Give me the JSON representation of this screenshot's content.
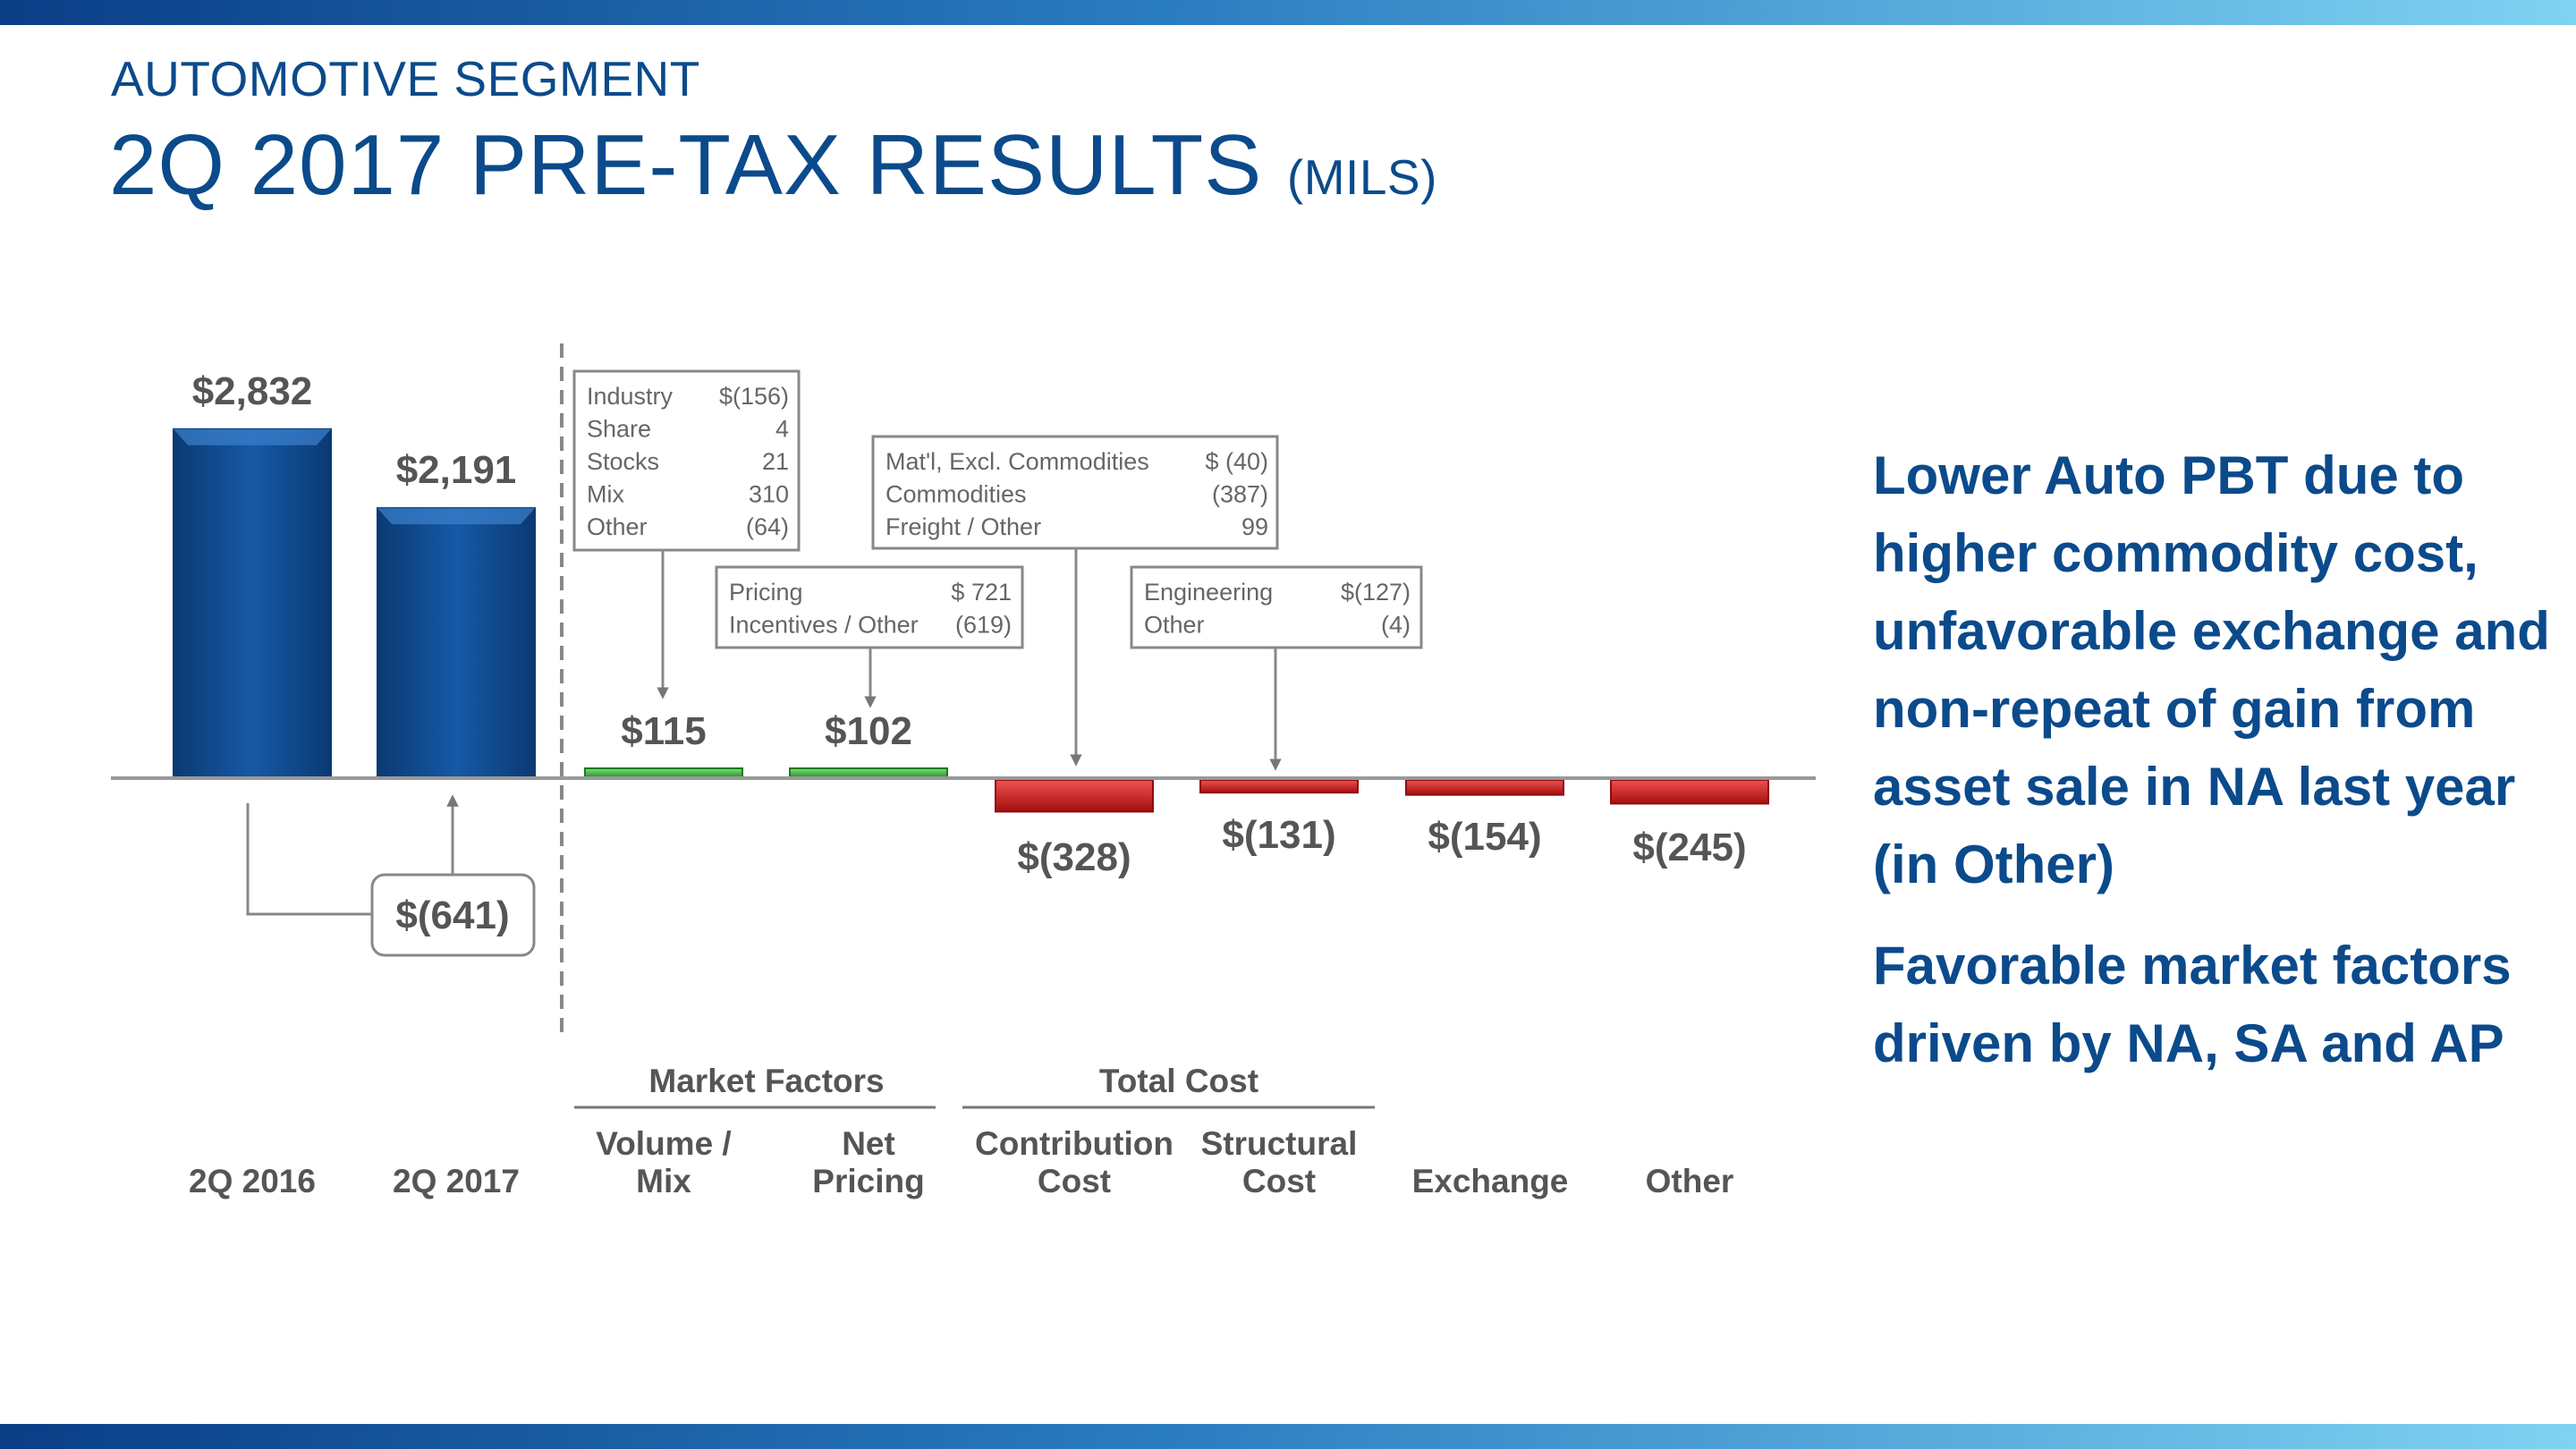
{
  "header": {
    "subtitle": "AUTOMOTIVE SEGMENT",
    "title": "2Q 2017 PRE-TAX RESULTS",
    "title_unit": "(MILS)"
  },
  "colors": {
    "title_blue": "#0b4a8b",
    "bar_blue": "#0c4a8f",
    "bar_green": "#2faa2f",
    "bar_red": "#d41f1f",
    "label_gray": "#555555",
    "box_border": "#888888"
  },
  "side_text": {
    "paragraph1": "Lower Auto PBT due to higher commodity cost, unfavorable exchange and non-repeat of gain from asset sale in NA last year (in Other)",
    "paragraph2": "Favorable market factors driven by NA, SA and AP"
  },
  "chart_data": {
    "type": "bar",
    "subtype": "waterfall",
    "categories": [
      "2Q 2016",
      "2Q 2017",
      "Volume / Mix",
      "Net Pricing",
      "Contribution Cost",
      "Structural Cost",
      "Exchange",
      "Other"
    ],
    "values": [
      2832,
      2191,
      115,
      102,
      -328,
      -131,
      -154,
      -245
    ],
    "value_labels": [
      "$2,832",
      "$2,191",
      "$115",
      "$102",
      "$(328)",
      "$(131)",
      "$(154)",
      "$(245)"
    ],
    "bar_kind": [
      "total",
      "total",
      "positive",
      "positive",
      "negative",
      "negative",
      "negative",
      "negative"
    ],
    "change": {
      "value": -641,
      "label": "$(641)"
    },
    "groups": [
      {
        "label": "Market Factors",
        "categories": [
          "Volume / Mix",
          "Net Pricing"
        ]
      },
      {
        "label": "Total Cost",
        "categories": [
          "Contribution Cost",
          "Structural Cost"
        ]
      }
    ],
    "detail_boxes": [
      {
        "target": "Volume / Mix",
        "rows": [
          {
            "label": "Industry",
            "value": "$(156)"
          },
          {
            "label": "Share",
            "value": "4"
          },
          {
            "label": "Stocks",
            "value": "21"
          },
          {
            "label": "Mix",
            "value": "310"
          },
          {
            "label": "Other",
            "value": "(64)"
          }
        ]
      },
      {
        "target": "Net Pricing",
        "rows": [
          {
            "label": "Pricing",
            "value": "$ 721"
          },
          {
            "label": "Incentives / Other",
            "value": "(619)"
          }
        ]
      },
      {
        "target": "Contribution Cost",
        "rows": [
          {
            "label": "Mat'l, Excl. Commodities",
            "value": "$  (40)"
          },
          {
            "label": "Commodities",
            "value": "(387)"
          },
          {
            "label": "Freight / Other",
            "value": "99"
          }
        ]
      },
      {
        "target": "Structural Cost",
        "rows": [
          {
            "label": "Engineering",
            "value": "$(127)"
          },
          {
            "label": "Other",
            "value": "(4)"
          }
        ]
      }
    ],
    "title": "",
    "xlabel": "",
    "ylabel": ""
  }
}
